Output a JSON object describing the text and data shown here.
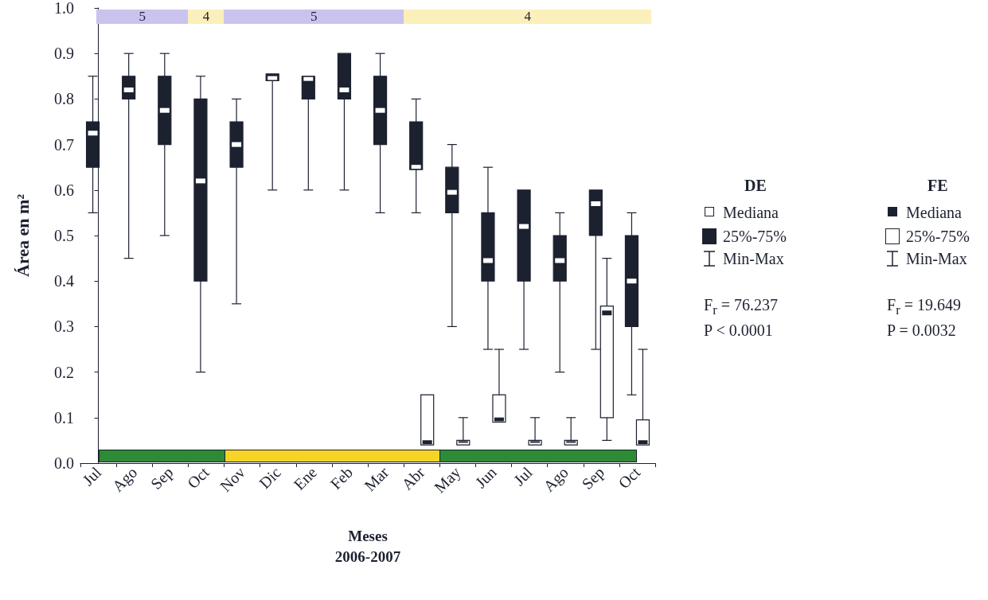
{
  "chart_data": {
    "type": "box",
    "xlabel": "Meses\n2006-2007",
    "ylabel": "Área en m²",
    "categories": [
      "Jul",
      "Ago",
      "Sep",
      "Oct",
      "Nov",
      "Dic",
      "Ene",
      "Feb",
      "Mar",
      "Abr",
      "May",
      "Jun",
      "Jul",
      "Ago",
      "Sep",
      "Oct"
    ],
    "ylim": [
      0,
      1
    ],
    "yticks": [
      {
        "value": 0,
        "label": "0.0"
      },
      0.1,
      0.2,
      0.3,
      0.4,
      0.5,
      0.6,
      0.7,
      0.8,
      0.9,
      {
        "value": 1,
        "label": "1.0"
      }
    ],
    "legend": "right",
    "series": [
      {
        "name": "DE",
        "color": "#1c2130",
        "boxes": [
          {
            "low": 0.55,
            "q1": 0.65,
            "median": 0.725,
            "q3": 0.75,
            "high": 0.85
          },
          {
            "low": 0.45,
            "q1": 0.8,
            "median": 0.82,
            "q3": 0.85,
            "high": 0.9
          },
          {
            "low": 0.5,
            "q1": 0.7,
            "median": 0.775,
            "q3": 0.85,
            "high": 0.9
          },
          {
            "low": 0.2,
            "q1": 0.4,
            "median": 0.62,
            "q3": 0.8,
            "high": 0.85
          },
          {
            "low": 0.35,
            "q1": 0.65,
            "median": 0.7,
            "q3": 0.75,
            "high": 0.8
          },
          {
            "low": 0.6,
            "q1": 0.84,
            "median": 0.845,
            "q3": 0.855,
            "high": 0.855
          },
          {
            "low": 0.6,
            "q1": 0.8,
            "median": 0.845,
            "q3": 0.85,
            "high": 0.85
          },
          {
            "low": 0.6,
            "q1": 0.8,
            "median": 0.82,
            "q3": 0.9,
            "high": 0.9
          },
          {
            "low": 0.55,
            "q1": 0.7,
            "median": 0.775,
            "q3": 0.85,
            "high": 0.9
          },
          {
            "low": 0.55,
            "q1": 0.645,
            "median": 0.65,
            "q3": 0.75,
            "high": 0.8
          },
          {
            "low": 0.3,
            "q1": 0.55,
            "median": 0.595,
            "q3": 0.65,
            "high": 0.7
          },
          {
            "low": 0.25,
            "q1": 0.4,
            "median": 0.445,
            "q3": 0.55,
            "high": 0.65
          },
          {
            "low": 0.25,
            "q1": 0.4,
            "median": 0.52,
            "q3": 0.6,
            "high": 0.6
          },
          {
            "low": 0.2,
            "q1": 0.4,
            "median": 0.445,
            "q3": 0.5,
            "high": 0.55
          },
          {
            "low": 0.25,
            "q1": 0.5,
            "median": 0.57,
            "q3": 0.6,
            "high": 0.6
          },
          {
            "low": 0.15,
            "q1": 0.3,
            "median": 0.4,
            "q3": 0.5,
            "high": 0.55
          }
        ]
      },
      {
        "name": "FE",
        "color": "#ffffff",
        "boxes": [
          null,
          null,
          null,
          null,
          null,
          null,
          null,
          null,
          null,
          {
            "low": 0.04,
            "q1": 0.04,
            "median": 0.045,
            "q3": 0.15,
            "high": 0.15
          },
          {
            "low": 0.04,
            "q1": 0.04,
            "median": 0.05,
            "q3": 0.05,
            "high": 0.1
          },
          {
            "low": 0.09,
            "q1": 0.09,
            "median": 0.095,
            "q3": 0.15,
            "high": 0.25
          },
          {
            "low": 0.04,
            "q1": 0.04,
            "median": 0.05,
            "q3": 0.05,
            "high": 0.1
          },
          {
            "low": 0.04,
            "q1": 0.04,
            "median": 0.05,
            "q3": 0.05,
            "high": 0.1
          },
          {
            "low": 0.05,
            "q1": 0.1,
            "median": 0.33,
            "q3": 0.345,
            "high": 0.45
          },
          {
            "low": 0.04,
            "q1": 0.04,
            "median": 0.045,
            "q3": 0.095,
            "high": 0.25
          }
        ]
      }
    ],
    "annotations": [
      "Mediana",
      "25%-75%",
      "Min-Max",
      "F$_{r}$ = 76.237",
      "P < 0.0001",
      "Mediana",
      "25%-75%",
      "Min-Max",
      "F$_{r}$ = 19.649",
      "P = 0.0032",
      "5",
      "4",
      "5",
      "4"
    ]
  }
}
